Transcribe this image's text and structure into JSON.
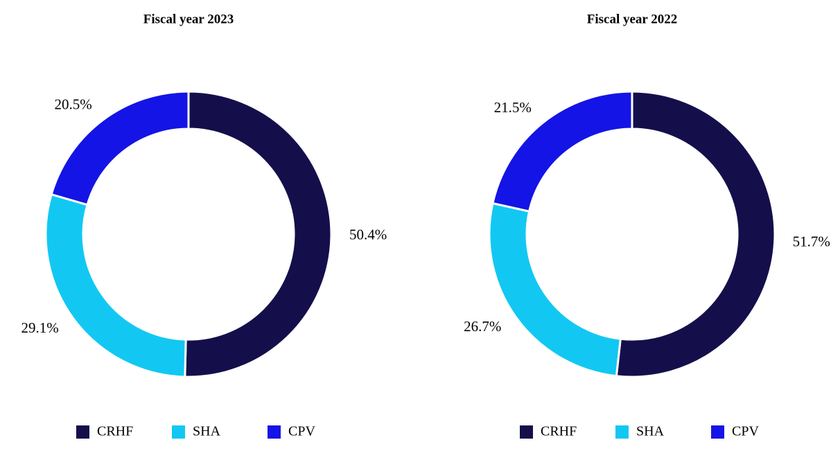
{
  "chart_data": [
    {
      "type": "donut",
      "title": "Fiscal year 2023",
      "categories": [
        "CRHF",
        "SHA",
        "CPV"
      ],
      "values": [
        50.4,
        29.1,
        20.5
      ],
      "value_labels": [
        "50.4%",
        "29.1%",
        "20.5%"
      ],
      "colors": [
        "#140f4b",
        "#12c8f2",
        "#1414e6"
      ],
      "legend": "bottom"
    },
    {
      "type": "donut",
      "title": "Fiscal year 2022",
      "categories": [
        "CRHF",
        "SHA",
        "CPV"
      ],
      "values": [
        51.7,
        26.7,
        21.5
      ],
      "value_labels": [
        "51.7%",
        "26.7%",
        "21.5%"
      ],
      "colors": [
        "#140f4b",
        "#12c8f2",
        "#1414e6"
      ],
      "legend": "bottom"
    }
  ]
}
